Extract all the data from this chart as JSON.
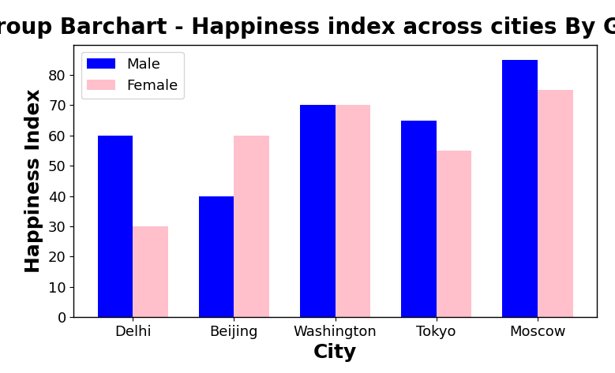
{
  "title": "Group Barchart - Happiness index across cities By Gender",
  "xlabel": "City",
  "ylabel": "Happiness Index",
  "categories": [
    "Delhi",
    "Beijing",
    "Washington",
    "Tokyo",
    "Moscow"
  ],
  "male_values": [
    60,
    40,
    70,
    65,
    85
  ],
  "female_values": [
    30,
    60,
    70,
    55,
    75
  ],
  "male_color": "blue",
  "female_color": "pink",
  "male_label": "Male",
  "female_label": "Female",
  "ylim": [
    0,
    90
  ],
  "yticks": [
    0,
    10,
    20,
    30,
    40,
    50,
    60,
    70,
    80
  ],
  "bar_width": 0.35,
  "title_fontsize": 20,
  "axis_label_fontsize": 18,
  "tick_fontsize": 13,
  "legend_fontsize": 13,
  "background_color": "#ffffff",
  "axes_background_color": "#ffffff"
}
